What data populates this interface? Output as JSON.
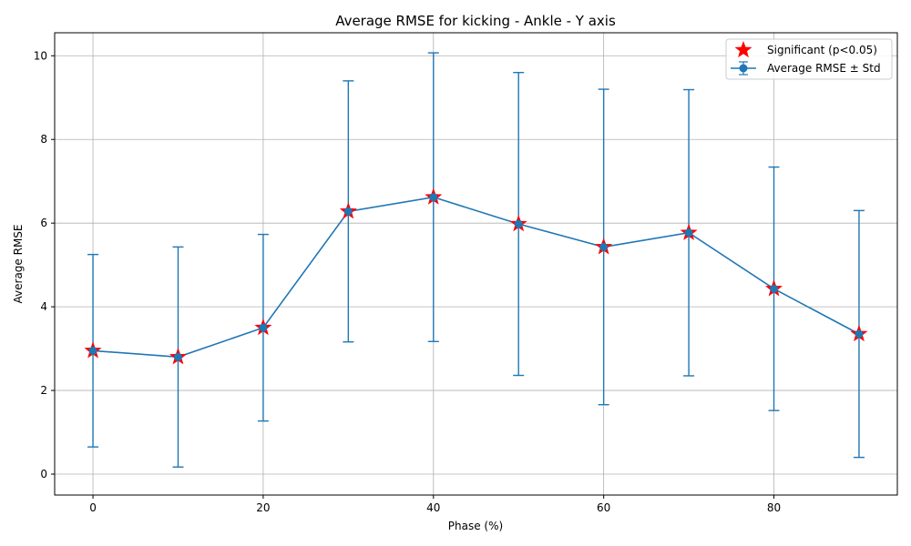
{
  "chart_data": {
    "type": "line",
    "title": "Average RMSE for kicking - Ankle - Y axis",
    "xlabel": "Phase (%)",
    "ylabel": "Average RMSE",
    "xlim": [
      -4.5,
      94.5
    ],
    "ylim": [
      -0.5,
      10.55
    ],
    "x_ticks": [
      0,
      20,
      40,
      60,
      80
    ],
    "y_ticks": [
      0,
      2,
      4,
      6,
      8,
      10
    ],
    "grid": true,
    "legend_position": "top-right",
    "colors": {
      "series": "#1f77b4",
      "significant": "#ff0000",
      "grid": "#b0b0b0"
    },
    "series": [
      {
        "name": "Average RMSE ± Std",
        "x": [
          0,
          10,
          20,
          30,
          40,
          50,
          60,
          70,
          80,
          90
        ],
        "y": [
          2.95,
          2.8,
          3.5,
          6.28,
          6.62,
          5.98,
          5.43,
          5.77,
          4.43,
          3.35
        ],
        "std": [
          2.3,
          2.63,
          2.23,
          3.12,
          3.45,
          3.62,
          3.77,
          3.42,
          2.91,
          2.95
        ]
      },
      {
        "name": "Significant (p<0.05)",
        "x": [
          0,
          10,
          20,
          30,
          40,
          50,
          60,
          70,
          80,
          90
        ],
        "y": [
          2.95,
          2.8,
          3.5,
          6.28,
          6.62,
          5.98,
          5.43,
          5.77,
          4.43,
          3.35
        ]
      }
    ]
  }
}
